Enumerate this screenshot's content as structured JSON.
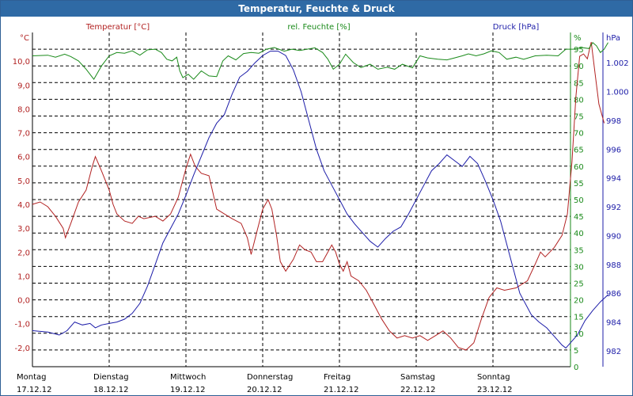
{
  "window": {
    "title": "Temperatur, Feuchte & Druck"
  },
  "colors": {
    "temp": "#b22222",
    "humidity": "#1a8a1a",
    "pressure": "#1c1ca8",
    "grid": "#000000",
    "axis": "#000000",
    "titlebar": "#2f6aa5"
  },
  "chart_data": {
    "type": "line",
    "title": "Temperatur, Feuchte & Druck",
    "x_categories": [
      {
        "day": "Montag",
        "date": "17.12.12"
      },
      {
        "day": "Dienstag",
        "date": "18.12.12"
      },
      {
        "day": "Mittwoch",
        "date": "19.12.12"
      },
      {
        "day": "Donnerstag",
        "date": "20.12.12"
      },
      {
        "day": "Freitag",
        "date": "21.12.12"
      },
      {
        "day": "Samstag",
        "date": "22.12.12"
      },
      {
        "day": "Sonntag",
        "date": "23.12.12"
      }
    ],
    "x_range_days": [
      0,
      7
    ],
    "axes": {
      "temp": {
        "label": "Temperatur [°C]",
        "unit": "°C",
        "ylim": [
          -2.8,
          11.2
        ],
        "ticks": [
          -2.0,
          -1.0,
          0.0,
          1.0,
          2.0,
          3.0,
          4.0,
          5.0,
          6.0,
          7.0,
          8.0,
          9.0,
          10.0
        ],
        "tick_labels": [
          "-2,0",
          "-1,0",
          "0,0",
          "1,0",
          "2,0",
          "3,0",
          "4,0",
          "5,0",
          "6,0",
          "7,0",
          "8,0",
          "9,0",
          "10,0"
        ]
      },
      "humidity": {
        "label": "rel. Feuchte [%]",
        "unit": "%",
        "ylim": [
          0,
          100
        ],
        "ticks": [
          0,
          5,
          10,
          15,
          20,
          25,
          30,
          35,
          40,
          45,
          50,
          55,
          60,
          65,
          70,
          75,
          80,
          85,
          90,
          95
        ],
        "tick_labels": [
          "0",
          "5",
          "10",
          "15",
          "20",
          "25",
          "30",
          "35",
          "40",
          "45",
          "50",
          "55",
          "60",
          "65",
          "70",
          "75",
          "80",
          "85",
          "90",
          "95"
        ]
      },
      "pressure": {
        "label": "Druck [hPa]",
        "unit": "hPa",
        "ylim": [
          980.9,
          1004.1
        ],
        "ticks": [
          982,
          984,
          986,
          988,
          990,
          992,
          994,
          996,
          998,
          1000,
          1002
        ],
        "tick_labels": [
          "982",
          "984",
          "986",
          "988",
          "990",
          "992",
          "994",
          "996",
          "998",
          "1.000",
          "1.002"
        ]
      }
    },
    "series": [
      {
        "name": "Temperatur",
        "axis": "temp",
        "points": [
          [
            0.0,
            4.0
          ],
          [
            0.1,
            4.1
          ],
          [
            0.2,
            3.9
          ],
          [
            0.3,
            3.5
          ],
          [
            0.4,
            3.0
          ],
          [
            0.43,
            2.6
          ],
          [
            0.5,
            3.2
          ],
          [
            0.6,
            4.1
          ],
          [
            0.7,
            4.6
          ],
          [
            0.78,
            5.6
          ],
          [
            0.82,
            6.0
          ],
          [
            0.9,
            5.4
          ],
          [
            1.0,
            4.6
          ],
          [
            1.05,
            4.0
          ],
          [
            1.1,
            3.6
          ],
          [
            1.2,
            3.3
          ],
          [
            1.3,
            3.2
          ],
          [
            1.38,
            3.5
          ],
          [
            1.45,
            3.4
          ],
          [
            1.6,
            3.5
          ],
          [
            1.7,
            3.3
          ],
          [
            1.8,
            3.6
          ],
          [
            1.9,
            4.3
          ],
          [
            2.0,
            5.5
          ],
          [
            2.06,
            6.1
          ],
          [
            2.12,
            5.6
          ],
          [
            2.2,
            5.3
          ],
          [
            2.3,
            5.2
          ],
          [
            2.35,
            4.5
          ],
          [
            2.4,
            3.8
          ],
          [
            2.5,
            3.6
          ],
          [
            2.6,
            3.4
          ],
          [
            2.72,
            3.2
          ],
          [
            2.8,
            2.6
          ],
          [
            2.85,
            1.9
          ],
          [
            2.92,
            2.8
          ],
          [
            3.0,
            3.8
          ],
          [
            3.07,
            4.2
          ],
          [
            3.12,
            3.8
          ],
          [
            3.18,
            2.7
          ],
          [
            3.23,
            1.6
          ],
          [
            3.3,
            1.2
          ],
          [
            3.4,
            1.7
          ],
          [
            3.48,
            2.3
          ],
          [
            3.55,
            2.1
          ],
          [
            3.63,
            2.0
          ],
          [
            3.7,
            1.6
          ],
          [
            3.78,
            1.6
          ],
          [
            3.85,
            2.0
          ],
          [
            3.9,
            2.3
          ],
          [
            3.95,
            2.0
          ],
          [
            4.0,
            1.5
          ],
          [
            4.05,
            1.2
          ],
          [
            4.1,
            1.6
          ],
          [
            4.15,
            1.0
          ],
          [
            4.25,
            0.8
          ],
          [
            4.35,
            0.4
          ],
          [
            4.45,
            -0.2
          ],
          [
            4.55,
            -0.8
          ],
          [
            4.65,
            -1.3
          ],
          [
            4.75,
            -1.6
          ],
          [
            4.85,
            -1.5
          ],
          [
            4.95,
            -1.6
          ],
          [
            5.05,
            -1.5
          ],
          [
            5.15,
            -1.7
          ],
          [
            5.25,
            -1.5
          ],
          [
            5.35,
            -1.3
          ],
          [
            5.45,
            -1.6
          ],
          [
            5.55,
            -2.0
          ],
          [
            5.65,
            -2.1
          ],
          [
            5.75,
            -1.8
          ],
          [
            5.85,
            -0.8
          ],
          [
            5.95,
            0.1
          ],
          [
            6.05,
            0.5
          ],
          [
            6.15,
            0.4
          ],
          [
            6.3,
            0.5
          ],
          [
            6.45,
            0.8
          ],
          [
            6.55,
            1.5
          ],
          [
            6.62,
            2.0
          ],
          [
            6.68,
            1.8
          ],
          [
            6.8,
            2.2
          ],
          [
            6.9,
            2.7
          ],
          [
            6.97,
            3.6
          ],
          [
            7.03,
            5.8
          ],
          [
            7.08,
            8.5
          ],
          [
            7.13,
            10.2
          ],
          [
            7.18,
            10.3
          ],
          [
            7.23,
            10.1
          ],
          [
            7.28,
            10.8
          ],
          [
            7.33,
            9.5
          ],
          [
            7.38,
            8.2
          ],
          [
            7.45,
            7.4
          ]
        ]
      },
      {
        "name": "rel. Feuchte",
        "axis": "humidity",
        "points": [
          [
            0.0,
            93.0
          ],
          [
            0.2,
            93.2
          ],
          [
            0.3,
            92.6
          ],
          [
            0.42,
            93.5
          ],
          [
            0.5,
            92.8
          ],
          [
            0.6,
            91.5
          ],
          [
            0.7,
            89.0
          ],
          [
            0.8,
            86.0
          ],
          [
            0.9,
            90.0
          ],
          [
            1.0,
            93.0
          ],
          [
            1.1,
            94.0
          ],
          [
            1.2,
            93.8
          ],
          [
            1.3,
            94.5
          ],
          [
            1.4,
            93.2
          ],
          [
            1.5,
            94.8
          ],
          [
            1.6,
            95.0
          ],
          [
            1.68,
            94.0
          ],
          [
            1.75,
            92.0
          ],
          [
            1.82,
            91.5
          ],
          [
            1.88,
            92.6
          ],
          [
            1.92,
            88.5
          ],
          [
            1.96,
            86.5
          ],
          [
            2.03,
            87.5
          ],
          [
            2.1,
            86.0
          ],
          [
            2.2,
            88.5
          ],
          [
            2.3,
            87.0
          ],
          [
            2.4,
            86.8
          ],
          [
            2.48,
            91.5
          ],
          [
            2.55,
            93.0
          ],
          [
            2.65,
            91.8
          ],
          [
            2.75,
            93.7
          ],
          [
            2.85,
            94.0
          ],
          [
            2.95,
            93.8
          ],
          [
            3.05,
            95.0
          ],
          [
            3.15,
            95.5
          ],
          [
            3.28,
            94.4
          ],
          [
            3.38,
            95.0
          ],
          [
            3.48,
            94.6
          ],
          [
            3.58,
            95.0
          ],
          [
            3.68,
            95.4
          ],
          [
            3.78,
            94.0
          ],
          [
            3.85,
            92.0
          ],
          [
            3.92,
            89.0
          ],
          [
            4.0,
            90.5
          ],
          [
            4.08,
            93.5
          ],
          [
            4.18,
            91.0
          ],
          [
            4.28,
            89.5
          ],
          [
            4.4,
            90.5
          ],
          [
            4.5,
            89.0
          ],
          [
            4.62,
            89.6
          ],
          [
            4.72,
            89.0
          ],
          [
            4.82,
            90.5
          ],
          [
            4.95,
            89.4
          ],
          [
            5.05,
            93.0
          ],
          [
            5.15,
            92.4
          ],
          [
            5.28,
            92.0
          ],
          [
            5.4,
            91.8
          ],
          [
            5.5,
            92.4
          ],
          [
            5.6,
            93.0
          ],
          [
            5.68,
            93.6
          ],
          [
            5.78,
            93.0
          ],
          [
            5.88,
            93.6
          ],
          [
            5.98,
            94.5
          ],
          [
            6.08,
            94.0
          ],
          [
            6.18,
            92.0
          ],
          [
            6.3,
            92.6
          ],
          [
            6.4,
            92.0
          ],
          [
            6.55,
            93.0
          ],
          [
            6.7,
            93.2
          ],
          [
            6.85,
            93.0
          ],
          [
            6.95,
            95.0
          ],
          [
            7.05,
            95.0
          ],
          [
            7.15,
            95.5
          ],
          [
            7.25,
            95.2
          ],
          [
            7.3,
            97.0
          ],
          [
            7.35,
            96.0
          ],
          [
            7.4,
            94.0
          ],
          [
            7.45,
            95.0
          ],
          [
            7.5,
            97.0
          ]
        ]
      },
      {
        "name": "Druck",
        "axis": "pressure",
        "points": [
          [
            0.0,
            983.4
          ],
          [
            0.2,
            983.3
          ],
          [
            0.35,
            983.1
          ],
          [
            0.45,
            983.4
          ],
          [
            0.55,
            984.0
          ],
          [
            0.65,
            983.8
          ],
          [
            0.75,
            983.9
          ],
          [
            0.82,
            983.6
          ],
          [
            0.9,
            983.8
          ],
          [
            1.0,
            983.9
          ],
          [
            1.1,
            984.0
          ],
          [
            1.2,
            984.2
          ],
          [
            1.3,
            984.6
          ],
          [
            1.4,
            985.3
          ],
          [
            1.5,
            986.5
          ],
          [
            1.6,
            988.0
          ],
          [
            1.7,
            989.5
          ],
          [
            1.8,
            990.5
          ],
          [
            1.9,
            991.5
          ],
          [
            2.0,
            992.8
          ],
          [
            2.1,
            994.2
          ],
          [
            2.2,
            995.5
          ],
          [
            2.3,
            996.8
          ],
          [
            2.4,
            997.8
          ],
          [
            2.5,
            998.4
          ],
          [
            2.6,
            999.8
          ],
          [
            2.7,
            1001.0
          ],
          [
            2.8,
            1001.4
          ],
          [
            2.9,
            1002.0
          ],
          [
            3.0,
            1002.5
          ],
          [
            3.1,
            1002.8
          ],
          [
            3.2,
            1002.8
          ],
          [
            3.3,
            1002.5
          ],
          [
            3.4,
            1001.5
          ],
          [
            3.5,
            1000.0
          ],
          [
            3.6,
            998.0
          ],
          [
            3.7,
            996.0
          ],
          [
            3.8,
            994.5
          ],
          [
            3.9,
            993.5
          ],
          [
            4.0,
            992.5
          ],
          [
            4.1,
            991.5
          ],
          [
            4.2,
            990.8
          ],
          [
            4.3,
            990.2
          ],
          [
            4.4,
            989.6
          ],
          [
            4.5,
            989.2
          ],
          [
            4.6,
            989.8
          ],
          [
            4.7,
            990.3
          ],
          [
            4.8,
            990.6
          ],
          [
            4.9,
            991.5
          ],
          [
            5.0,
            992.5
          ],
          [
            5.1,
            993.5
          ],
          [
            5.2,
            994.5
          ],
          [
            5.3,
            995.0
          ],
          [
            5.4,
            995.6
          ],
          [
            5.5,
            995.2
          ],
          [
            5.6,
            994.8
          ],
          [
            5.7,
            995.5
          ],
          [
            5.8,
            995.0
          ],
          [
            5.9,
            993.8
          ],
          [
            6.0,
            992.5
          ],
          [
            6.1,
            991.0
          ],
          [
            6.2,
            989.0
          ],
          [
            6.3,
            987.0
          ],
          [
            6.35,
            986.0
          ],
          [
            6.4,
            985.5
          ],
          [
            6.5,
            984.5
          ],
          [
            6.6,
            984.0
          ],
          [
            6.7,
            983.6
          ],
          [
            6.8,
            983.0
          ],
          [
            6.9,
            982.4
          ],
          [
            6.95,
            982.2
          ],
          [
            7.0,
            982.5
          ],
          [
            7.1,
            983.1
          ],
          [
            7.2,
            984.1
          ],
          [
            7.3,
            984.8
          ],
          [
            7.4,
            985.4
          ],
          [
            7.5,
            985.9
          ]
        ]
      }
    ]
  }
}
